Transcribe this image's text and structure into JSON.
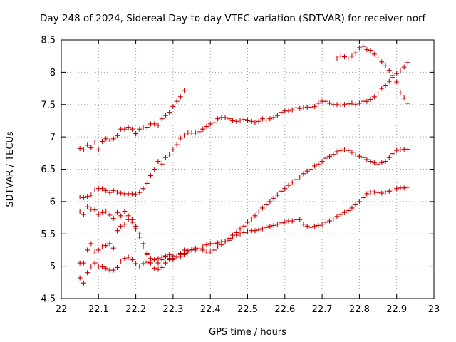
{
  "chart_data": {
    "type": "scatter",
    "title": "Day 248 of 2024, Sidereal Day-to-day VTEC variation (SDTVAR) for receiver norf",
    "xlabel": "GPS time / hours",
    "ylabel": "SDTVAR / TECUs",
    "xlim": [
      22,
      23
    ],
    "ylim": [
      4.5,
      8.5
    ],
    "x_ticks": [
      "22",
      "22.1",
      "22.2",
      "22.3",
      "22.4",
      "22.5",
      "22.6",
      "22.7",
      "22.8",
      "22.9",
      "23"
    ],
    "y_ticks": [
      "4.5",
      "5",
      "5.5",
      "6",
      "6.5",
      "7",
      "7.5",
      "8",
      "8.5"
    ],
    "grid": true,
    "marker": "plus",
    "color": "#cc0000",
    "series": [
      {
        "x": [
          22.05,
          22.06,
          22.07,
          22.08,
          22.09,
          22.1,
          22.11,
          22.12,
          22.13,
          22.14,
          22.15,
          22.16,
          22.17,
          22.18,
          22.19,
          22.2,
          22.21,
          22.22,
          22.23,
          22.24,
          22.25,
          22.26,
          22.27,
          22.28,
          22.29,
          22.3,
          22.31,
          22.32,
          22.33
        ],
        "y": [
          6.82,
          6.8,
          6.87,
          6.83,
          6.92,
          6.8,
          6.93,
          6.97,
          6.95,
          6.97,
          7.02,
          7.12,
          7.12,
          7.15,
          7.12,
          7.05,
          7.12,
          7.14,
          7.15,
          7.2,
          7.2,
          7.18,
          7.28,
          7.33,
          7.38,
          7.47,
          7.55,
          7.62,
          7.72
        ]
      },
      {
        "x": [
          22.05,
          22.06,
          22.07,
          22.08,
          22.09,
          22.1,
          22.11,
          22.12,
          22.13,
          22.14,
          22.15,
          22.16,
          22.17,
          22.18,
          22.19,
          22.2,
          22.21,
          22.22,
          22.23,
          22.24,
          22.25,
          22.26,
          22.27,
          22.28,
          22.29,
          22.3,
          22.31,
          22.32,
          22.33,
          22.34,
          22.35,
          22.36,
          22.37,
          22.38,
          22.39,
          22.4,
          22.41,
          22.42,
          22.43,
          22.44,
          22.45,
          22.46,
          22.47,
          22.48,
          22.49,
          22.5,
          22.51,
          22.52,
          22.53,
          22.54,
          22.55,
          22.56,
          22.57,
          22.58,
          22.59,
          22.6,
          22.61,
          22.62,
          22.63,
          22.64,
          22.65,
          22.66,
          22.67,
          22.68,
          22.69,
          22.7,
          22.71,
          22.72,
          22.73,
          22.74,
          22.75,
          22.76,
          22.77,
          22.78,
          22.79,
          22.8,
          22.81,
          22.82,
          22.83,
          22.84,
          22.85,
          22.86,
          22.87,
          22.88,
          22.89,
          22.9,
          22.91,
          22.92,
          22.93
        ],
        "y": [
          6.07,
          6.06,
          6.08,
          6.1,
          6.18,
          6.2,
          6.2,
          6.17,
          6.14,
          6.17,
          6.15,
          6.13,
          6.12,
          6.12,
          6.12,
          6.11,
          6.14,
          6.2,
          6.28,
          6.4,
          6.5,
          6.62,
          6.58,
          6.68,
          6.72,
          6.8,
          6.88,
          6.98,
          7.03,
          7.06,
          7.06,
          7.06,
          7.08,
          7.12,
          7.16,
          7.2,
          7.22,
          7.28,
          7.3,
          7.3,
          7.28,
          7.25,
          7.24,
          7.26,
          7.27,
          7.25,
          7.24,
          7.22,
          7.24,
          7.28,
          7.26,
          7.28,
          7.3,
          7.33,
          7.38,
          7.4,
          7.4,
          7.42,
          7.45,
          7.44,
          7.45,
          7.46,
          7.46,
          7.47,
          7.52,
          7.55,
          7.55,
          7.52,
          7.5,
          7.5,
          7.49,
          7.5,
          7.51,
          7.52,
          7.5,
          7.52,
          7.55,
          7.55,
          7.58,
          7.62,
          7.68,
          7.75,
          7.8,
          7.86,
          7.92,
          7.98,
          8.02,
          8.08,
          8.15
        ]
      },
      {
        "x": [
          22.05,
          22.06,
          22.07,
          22.08,
          22.09,
          22.1,
          22.11,
          22.12,
          22.13,
          22.14,
          22.15,
          22.16,
          22.17,
          22.18,
          22.19,
          22.2,
          22.21,
          22.22,
          22.23,
          22.24,
          22.25,
          22.26,
          22.27,
          22.28,
          22.29,
          22.3,
          22.31,
          22.32,
          22.33,
          22.34,
          22.35,
          22.36,
          22.37,
          22.38,
          22.39,
          22.4,
          22.41,
          22.42,
          22.43,
          22.44,
          22.45,
          22.46,
          22.47,
          22.48,
          22.49,
          22.5,
          22.51,
          22.52,
          22.53,
          22.54,
          22.55,
          22.56,
          22.57,
          22.58,
          22.59,
          22.6,
          22.61,
          22.62,
          22.63,
          22.64,
          22.65,
          22.66,
          22.67,
          22.68,
          22.69,
          22.7,
          22.71,
          22.72,
          22.73,
          22.74,
          22.75,
          22.76,
          22.77,
          22.78,
          22.79,
          22.8,
          22.81,
          22.82,
          22.83,
          22.84,
          22.85,
          22.86,
          22.87,
          22.88,
          22.89,
          22.9,
          22.91,
          22.92,
          22.93
        ],
        "y": [
          5.84,
          5.8,
          5.92,
          5.88,
          5.87,
          5.8,
          5.83,
          5.84,
          5.79,
          5.74,
          5.83,
          5.78,
          5.85,
          5.78,
          5.72,
          5.62,
          5.45,
          5.3,
          5.18,
          5.12,
          5.1,
          5.05,
          5.1,
          5.15,
          5.12,
          5.1,
          5.14,
          5.2,
          5.25,
          5.24,
          5.26,
          5.25,
          5.27,
          5.25,
          5.22,
          5.22,
          5.25,
          5.3,
          5.33,
          5.38,
          5.43,
          5.48,
          5.52,
          5.58,
          5.62,
          5.68,
          5.73,
          5.78,
          5.84,
          5.9,
          5.95,
          6.0,
          6.05,
          6.1,
          6.16,
          6.2,
          6.25,
          6.3,
          6.34,
          6.38,
          6.43,
          6.47,
          6.5,
          6.55,
          6.58,
          6.62,
          6.67,
          6.7,
          6.73,
          6.77,
          6.79,
          6.8,
          6.79,
          6.76,
          6.72,
          6.7,
          6.68,
          6.65,
          6.62,
          6.6,
          6.58,
          6.6,
          6.62,
          6.68,
          6.74,
          6.79,
          6.8,
          6.81,
          6.81
        ]
      },
      {
        "x": [
          22.05,
          22.06,
          22.07,
          22.08,
          22.09,
          22.1,
          22.11,
          22.12,
          22.13,
          22.14,
          22.15,
          22.16,
          22.17,
          22.18,
          22.19,
          22.2,
          22.21,
          22.22,
          22.23,
          22.24,
          22.25,
          22.26,
          22.27,
          22.28,
          22.29,
          22.3,
          22.31,
          22.32,
          22.33,
          22.34,
          22.35,
          22.36,
          22.37,
          22.38,
          22.39,
          22.4,
          22.41,
          22.42,
          22.43,
          22.44,
          22.45,
          22.46,
          22.47,
          22.48,
          22.49,
          22.5,
          22.51,
          22.52,
          22.53,
          22.54,
          22.55,
          22.56,
          22.57,
          22.58,
          22.59,
          22.6,
          22.61,
          22.62,
          22.63,
          22.64,
          22.65,
          22.66,
          22.67,
          22.68,
          22.69,
          22.7,
          22.71,
          22.72,
          22.73,
          22.74,
          22.75,
          22.76,
          22.77,
          22.78,
          22.79,
          22.8,
          22.81,
          22.82,
          22.83,
          22.84,
          22.85,
          22.86,
          22.87,
          22.88,
          22.89,
          22.9,
          22.91,
          22.92,
          22.93
        ],
        "y": [
          5.05,
          5.05,
          5.25,
          5.35,
          5.22,
          5.25,
          5.3,
          5.32,
          5.35,
          5.28,
          5.55,
          5.62,
          5.65,
          5.72,
          5.68,
          5.58,
          5.5,
          5.35,
          5.2,
          5.05,
          4.97,
          4.95,
          4.98,
          5.05,
          5.1,
          5.12,
          5.15,
          5.18,
          5.2,
          5.22,
          5.25,
          5.28,
          5.27,
          5.3,
          5.33,
          5.35,
          5.35,
          5.36,
          5.38,
          5.38,
          5.4,
          5.45,
          5.48,
          5.5,
          5.52,
          5.53,
          5.55,
          5.55,
          5.56,
          5.58,
          5.6,
          5.62,
          5.63,
          5.65,
          5.67,
          5.68,
          5.7,
          5.7,
          5.72,
          5.72,
          5.65,
          5.62,
          5.6,
          5.62,
          5.63,
          5.65,
          5.68,
          5.7,
          5.73,
          5.77,
          5.8,
          5.83,
          5.86,
          5.9,
          5.95,
          6.0,
          6.06,
          6.12,
          6.15,
          6.15,
          6.14,
          6.13,
          6.15,
          6.16,
          6.18,
          6.2,
          6.21,
          6.21,
          6.22
        ]
      },
      {
        "x": [
          22.05,
          22.06,
          22.07,
          22.08,
          22.09,
          22.1,
          22.11,
          22.12,
          22.13,
          22.14,
          22.15,
          22.16,
          22.17,
          22.18,
          22.19,
          22.2,
          22.21,
          22.22,
          22.23,
          22.24,
          22.25,
          22.26,
          22.27,
          22.28,
          22.29,
          22.3,
          22.31,
          22.32,
          22.33
        ],
        "y": [
          4.82,
          4.74,
          4.9,
          5.0,
          5.05,
          5.0,
          4.99,
          4.97,
          4.94,
          4.94,
          4.98,
          5.08,
          5.12,
          5.14,
          5.1,
          5.04,
          5.0,
          5.04,
          5.06,
          5.08,
          5.1,
          5.12,
          5.14,
          5.16,
          5.18,
          5.16,
          5.14,
          5.15,
          5.18
        ]
      },
      {
        "x": [
          22.74,
          22.75,
          22.76,
          22.77,
          22.78,
          22.79,
          22.8,
          22.81,
          22.82,
          22.83,
          22.84,
          22.85,
          22.86,
          22.87,
          22.88,
          22.89,
          22.9,
          22.91,
          22.92,
          22.93
        ],
        "y": [
          8.22,
          8.25,
          8.24,
          8.22,
          8.25,
          8.3,
          8.38,
          8.4,
          8.35,
          8.34,
          8.28,
          8.22,
          8.16,
          8.1,
          8.03,
          7.95,
          7.85,
          7.68,
          7.6,
          7.52
        ]
      }
    ]
  }
}
